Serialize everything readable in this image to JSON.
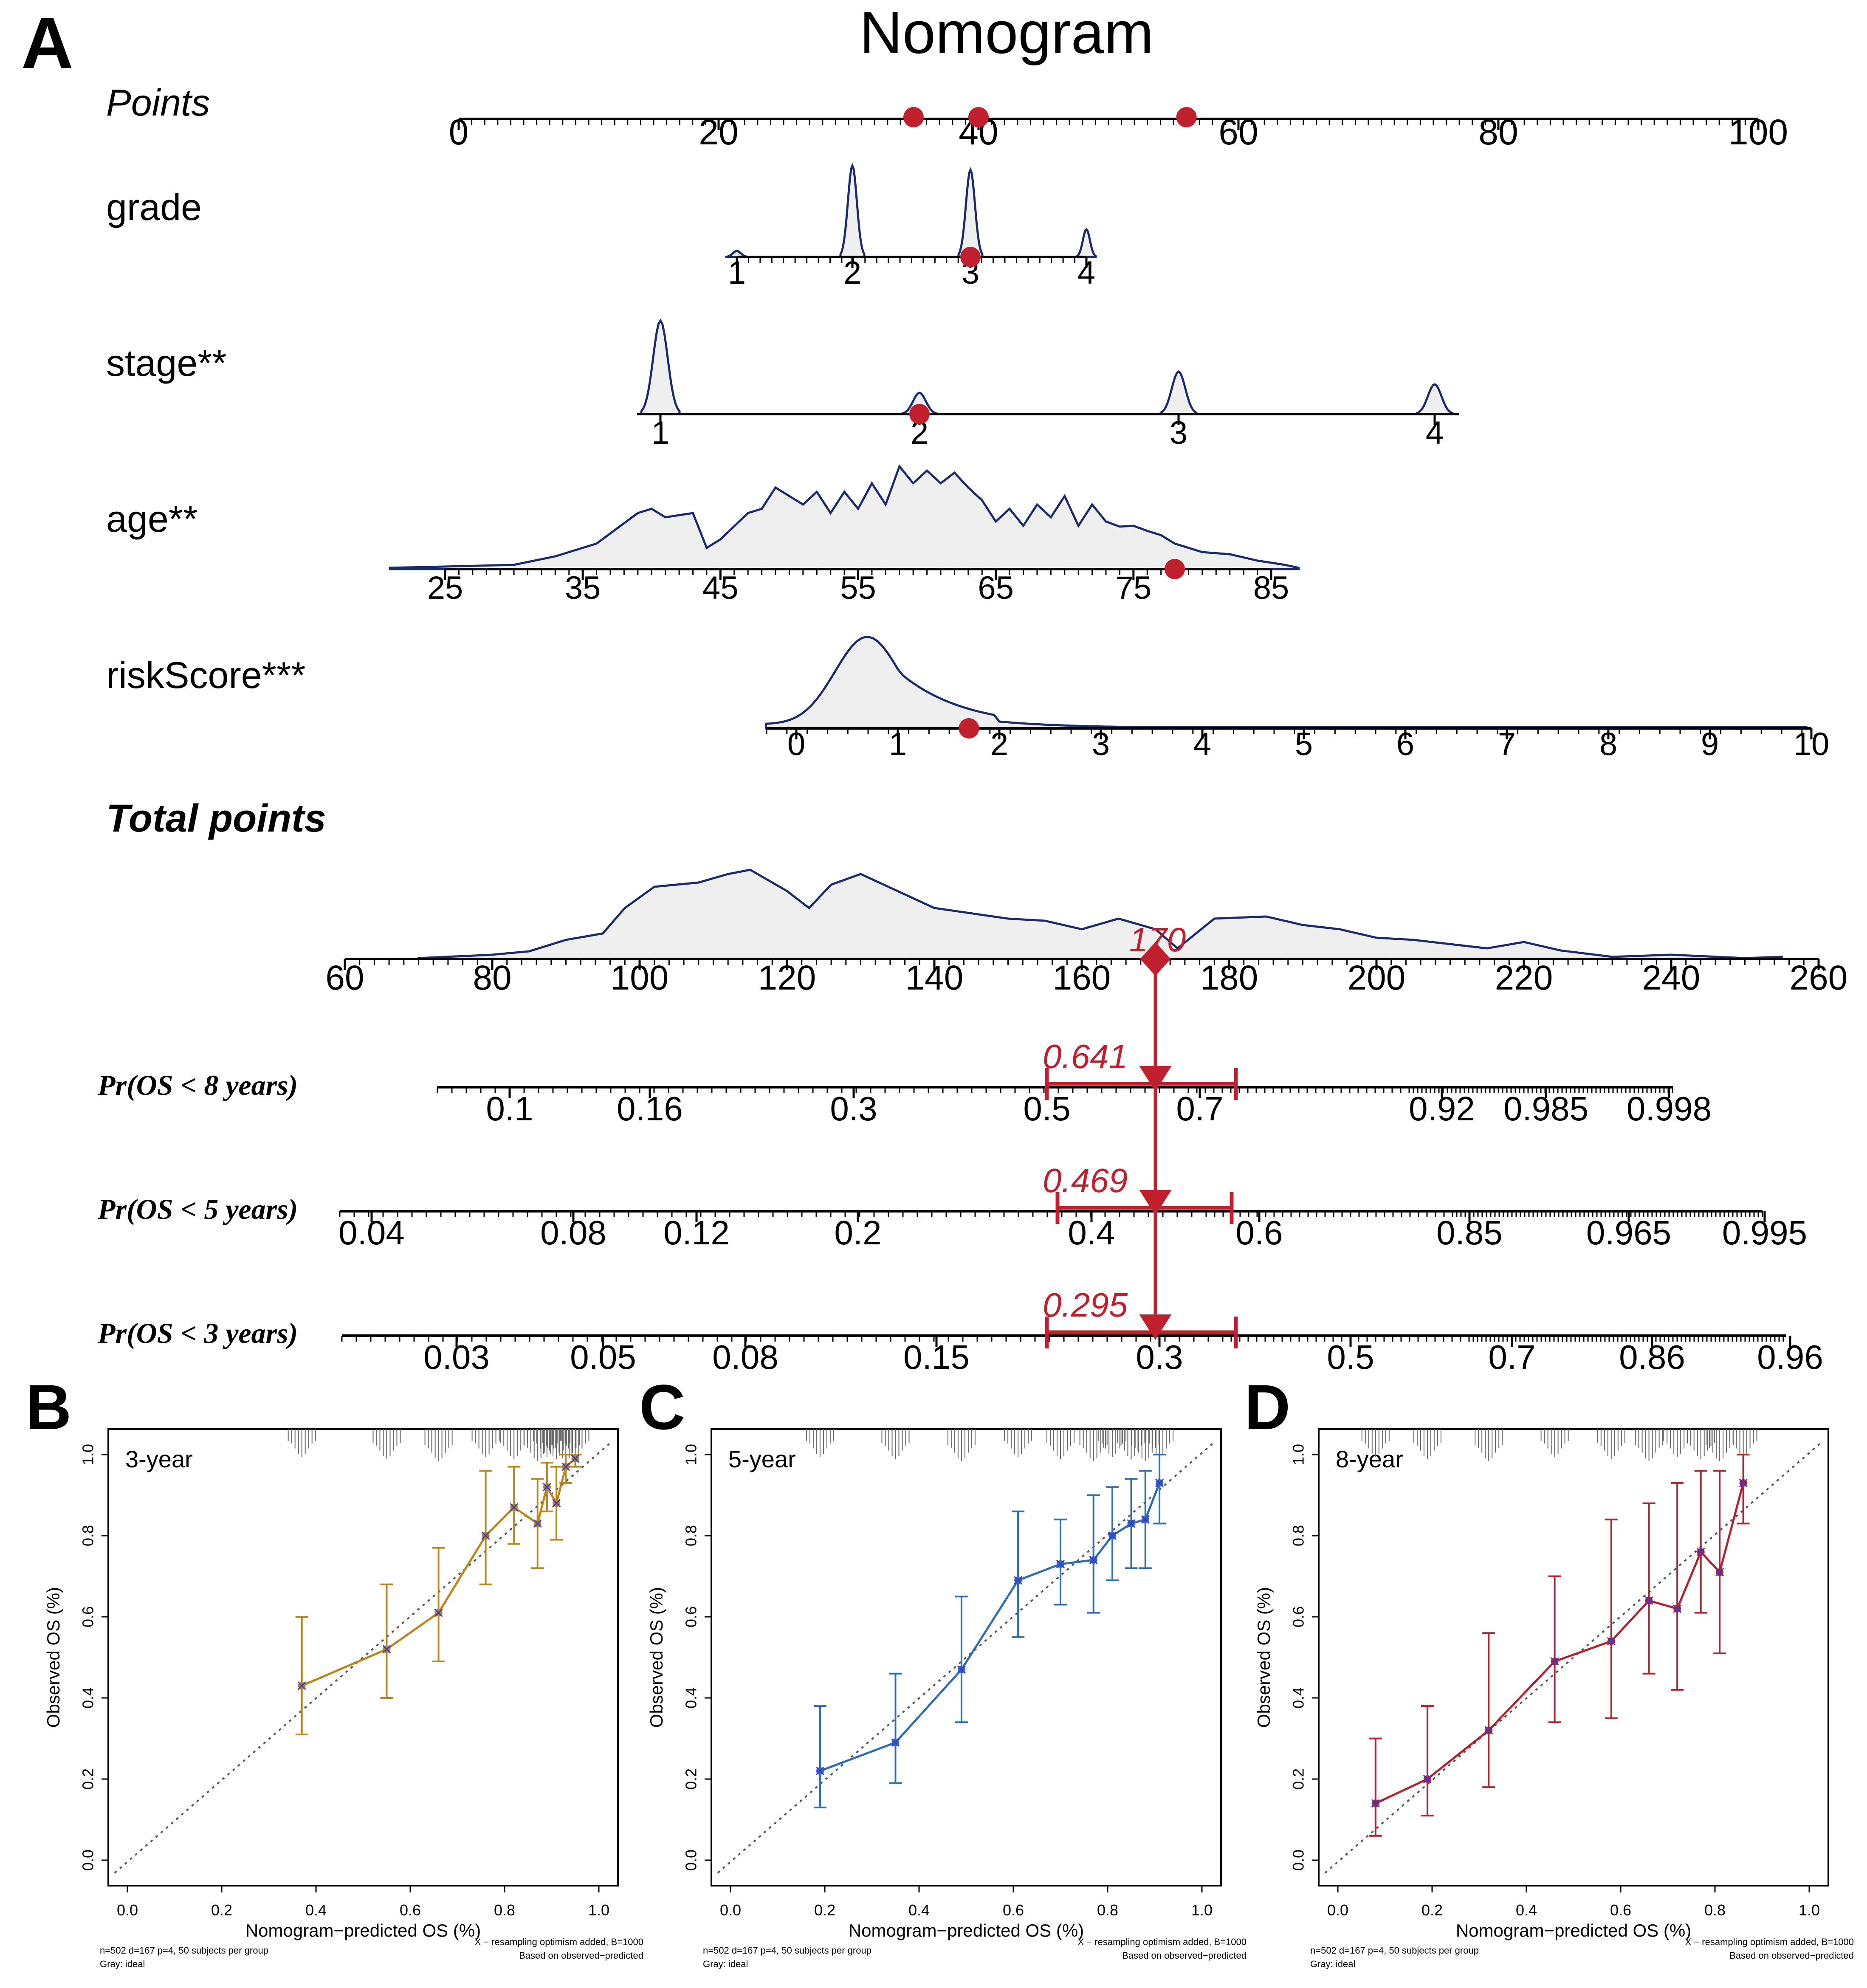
{
  "chart_data": [
    {
      "type": "nomogram",
      "panel_letter": "A",
      "title": "Nomogram",
      "points_label": "Points",
      "points_axis": {
        "range": [
          0,
          100
        ],
        "tick_labels": [
          "0",
          "20",
          "40",
          "60",
          "80",
          "100"
        ]
      },
      "highlight_points": [
        35,
        40,
        56
      ],
      "variables": [
        {
          "label": "grade",
          "tick_labels": [
            "1",
            "2",
            "3",
            "4"
          ],
          "selected": "3"
        },
        {
          "label": "stage**",
          "tick_labels": [
            "1",
            "2",
            "3",
            "4"
          ],
          "selected": "2"
        },
        {
          "label": "age**",
          "tick_labels": [
            "25",
            "35",
            "45",
            "55",
            "65",
            "75",
            "85"
          ],
          "selected_value": 78
        },
        {
          "label": "riskScore***",
          "tick_labels": [
            "0",
            "1",
            "2",
            "3",
            "4",
            "5",
            "6",
            "7",
            "8",
            "9",
            "10"
          ],
          "selected_value": 1.7
        }
      ],
      "total_points": {
        "label": "Total points",
        "range": [
          60,
          260
        ],
        "tick_labels": [
          "60",
          "80",
          "100",
          "120",
          "140",
          "160",
          "180",
          "200",
          "220",
          "240",
          "260"
        ],
        "value_label": "170"
      },
      "outcomes": [
        {
          "label": "Pr(OS < 8 years)",
          "tick_labels": [
            "0.1",
            "0.16",
            "0.3",
            "0.5",
            "0.7",
            "0.92",
            "0.985",
            "0.998"
          ],
          "value_label": "0.641",
          "ci": [
            0.49,
            0.76
          ]
        },
        {
          "label": "Pr(OS < 5 years)",
          "tick_labels": [
            "0.04",
            "0.08",
            "0.12",
            "0.2",
            "0.4",
            "0.6",
            "0.85",
            "0.965",
            "0.995"
          ],
          "value_label": "0.469",
          "ci": [
            0.35,
            0.59
          ]
        },
        {
          "label": "Pr(OS < 3 years)",
          "tick_labels": [
            "0.03",
            "0.05",
            "0.08",
            "0.15",
            "0.3",
            "0.5",
            "0.7",
            "0.86",
            "0.96"
          ],
          "value_label": "0.295",
          "ci": [
            0.21,
            0.38
          ]
        }
      ]
    },
    {
      "type": "line",
      "panel_letter": "B",
      "inset_label": "3-year",
      "xlabel": "Nomogram−predicted OS (%)",
      "ylabel": "Observed OS (%)",
      "xlim": [
        0,
        1
      ],
      "ylim": [
        0,
        1
      ],
      "tick_labels": [
        "0.0",
        "0.2",
        "0.4",
        "0.6",
        "0.8",
        "1.0"
      ],
      "color": "#b8861b",
      "footnote_left": [
        "n=502 d=167 p=4, 50 subjects per group",
        "Gray: ideal"
      ],
      "footnote_right": [
        "X − resampling optimism added, B=1000",
        "Based on observed−predicted"
      ],
      "x": [
        0.37,
        0.55,
        0.66,
        0.76,
        0.82,
        0.87,
        0.89,
        0.91,
        0.93,
        0.95
      ],
      "y": [
        0.43,
        0.52,
        0.61,
        0.8,
        0.87,
        0.83,
        0.92,
        0.88,
        0.97,
        0.99
      ],
      "lower": [
        0.31,
        0.4,
        0.49,
        0.68,
        0.78,
        0.72,
        0.86,
        0.79,
        0.93,
        0.97
      ],
      "upper": [
        0.6,
        0.68,
        0.77,
        0.96,
        0.97,
        0.94,
        0.98,
        0.97,
        1.0,
        1.0
      ]
    },
    {
      "type": "line",
      "panel_letter": "C",
      "inset_label": "5-year",
      "xlabel": "Nomogram−predicted OS (%)",
      "ylabel": "Observed OS (%)",
      "xlim": [
        0,
        1
      ],
      "ylim": [
        0,
        1
      ],
      "tick_labels": [
        "0.0",
        "0.2",
        "0.4",
        "0.6",
        "0.8",
        "1.0"
      ],
      "color": "#2e6db4",
      "footnote_left": [
        "n=502 d=167 p=4, 50 subjects per group",
        "Gray: ideal"
      ],
      "footnote_right": [
        "X − resampling optimism added, B=1000",
        "Based on observed−predicted"
      ],
      "x": [
        0.19,
        0.35,
        0.49,
        0.61,
        0.7,
        0.77,
        0.81,
        0.85,
        0.88,
        0.91
      ],
      "y": [
        0.22,
        0.29,
        0.47,
        0.69,
        0.73,
        0.74,
        0.8,
        0.83,
        0.84,
        0.93
      ],
      "lower": [
        0.13,
        0.19,
        0.34,
        0.55,
        0.63,
        0.61,
        0.69,
        0.72,
        0.72,
        0.83
      ],
      "upper": [
        0.38,
        0.46,
        0.65,
        0.86,
        0.84,
        0.9,
        0.92,
        0.94,
        0.96,
        1.0
      ]
    },
    {
      "type": "line",
      "panel_letter": "D",
      "inset_label": "8-year",
      "xlabel": "Nomogram−predicted OS (%)",
      "ylabel": "Observed OS (%)",
      "xlim": [
        0,
        1
      ],
      "ylim": [
        0,
        1
      ],
      "tick_labels": [
        "0.0",
        "0.2",
        "0.4",
        "0.6",
        "0.8",
        "1.0"
      ],
      "color": "#b5202e",
      "footnote_left": [
        "n=502 d=167 p=4, 50 subjects per group",
        "Gray: ideal"
      ],
      "footnote_right": [
        "X − resampling optimism added, B=1000",
        "Based on observed−predicted"
      ],
      "x": [
        0.08,
        0.19,
        0.32,
        0.46,
        0.58,
        0.66,
        0.72,
        0.77,
        0.81,
        0.86
      ],
      "y": [
        0.14,
        0.2,
        0.32,
        0.49,
        0.54,
        0.64,
        0.62,
        0.76,
        0.71,
        0.93
      ],
      "lower": [
        0.06,
        0.11,
        0.18,
        0.34,
        0.35,
        0.46,
        0.42,
        0.61,
        0.51,
        0.83
      ],
      "upper": [
        0.3,
        0.38,
        0.56,
        0.7,
        0.84,
        0.88,
        0.93,
        0.96,
        0.96,
        1.0
      ]
    }
  ]
}
